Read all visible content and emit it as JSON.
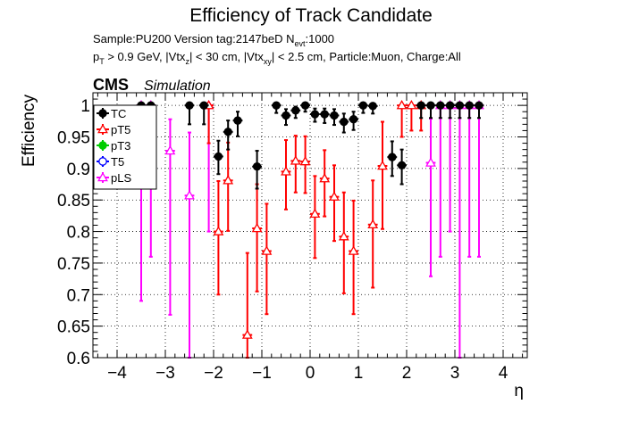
{
  "header": {
    "title": "Efficiency of Track Candidate",
    "sample_line": "Sample:PU200   Version tag:2147beD  N",
    "nevt_sub": "evt",
    "nevt_value": ":1000",
    "cuts": {
      "p": "p",
      "T": "T",
      "a": " > 0.9 GeV, |Vtx",
      "z": "z",
      "b": "| < 30 cm, |Vtx",
      "xy": "xy",
      "c": "| < 2.5 cm, Particle:Muon, Charge:All"
    },
    "cms": "CMS",
    "simulation": "Simulation"
  },
  "chart_data": {
    "type": "scatter",
    "title": "Efficiency of Track Candidate",
    "xlabel": "η",
    "ylabel": "Efficiency",
    "xlim": [
      -4.5,
      4.5
    ],
    "ylim": [
      0.6,
      1.02
    ],
    "x_ticks": [
      -4,
      -3,
      -2,
      -1,
      0,
      1,
      2,
      3,
      4
    ],
    "y_ticks": [
      0.6,
      0.65,
      0.7,
      0.75,
      0.8,
      0.85,
      0.9,
      0.95,
      1
    ],
    "y_tick_labels": [
      "0.6",
      "0.65",
      "0.7",
      "0.75",
      "0.8",
      "0.85",
      "0.9",
      "0.95",
      "1"
    ],
    "grid": true,
    "legend_position": "top-left",
    "series": [
      {
        "name": "TC",
        "color": "#000000",
        "marker": "filled-circle",
        "x": [
          -3.5,
          -3.3,
          -2.5,
          -2.2,
          -1.9,
          -1.7,
          -1.5,
          -1.1,
          -0.7,
          -0.5,
          -0.3,
          -0.1,
          0.1,
          0.3,
          0.5,
          0.7,
          0.9,
          1.1,
          1.3,
          1.7,
          1.9,
          2.3,
          2.5,
          2.7,
          2.9,
          3.1,
          3.3,
          3.5
        ],
        "y": [
          1.0,
          1.0,
          1.0,
          1.0,
          0.919,
          0.958,
          0.976,
          0.903,
          1.0,
          0.984,
          0.992,
          1.0,
          0.986,
          0.986,
          0.984,
          0.974,
          0.978,
          1.0,
          0.999,
          0.918,
          0.905,
          1.0,
          1.0,
          1.0,
          1.0,
          1.0,
          1.0,
          1.0
        ],
        "err_low": [
          0.03,
          0.03,
          0.03,
          0.03,
          0.028,
          0.028,
          0.025,
          0.035,
          0.012,
          0.015,
          0.012,
          0.01,
          0.012,
          0.014,
          0.015,
          0.017,
          0.017,
          0.012,
          0.012,
          0.03,
          0.03,
          0.02,
          0.02,
          0.02,
          0.02,
          0.02,
          0.02,
          0.02
        ],
        "err_high": [
          0,
          0,
          0,
          0,
          0.025,
          0.018,
          0.014,
          0.025,
          0,
          0.01,
          0.006,
          0,
          0.009,
          0.009,
          0.01,
          0.013,
          0.012,
          0,
          0.001,
          0.025,
          0.025,
          0,
          0,
          0,
          0,
          0,
          0,
          0
        ]
      },
      {
        "name": "pT5",
        "color": "#ff0000",
        "marker": "open-triangle",
        "x": [
          -2.1,
          -1.9,
          -1.7,
          -1.3,
          -1.1,
          -0.9,
          -0.5,
          -0.3,
          -0.1,
          0.1,
          0.3,
          0.5,
          0.7,
          0.9,
          1.3,
          1.5,
          1.9,
          2.1,
          2.3
        ],
        "y": [
          1.0,
          0.8,
          0.881,
          0.636,
          0.805,
          0.769,
          0.895,
          0.912,
          0.911,
          0.828,
          0.884,
          0.855,
          0.792,
          0.769,
          0.811,
          0.904,
          1.0,
          1.0,
          1.0
        ],
        "err_low": [
          0.06,
          0.1,
          0.08,
          0.14,
          0.1,
          0.1,
          0.06,
          0.05,
          0.05,
          0.07,
          0.06,
          0.07,
          0.09,
          0.1,
          0.1,
          0.1,
          0.05,
          0.04,
          0.04
        ],
        "err_high": [
          0,
          0.08,
          0.06,
          0.13,
          0.07,
          0.075,
          0.05,
          0.04,
          0.04,
          0.06,
          0.045,
          0.05,
          0.07,
          0.08,
          0.07,
          0.07,
          0,
          0,
          0
        ]
      },
      {
        "name": "pT3",
        "color": "#00cc00",
        "marker": "filled-circle",
        "x": [],
        "y": [],
        "err_low": [],
        "err_high": []
      },
      {
        "name": "T5",
        "color": "#0000ff",
        "marker": "open-circle",
        "x": [],
        "y": [],
        "err_low": [],
        "err_high": []
      },
      {
        "name": "pLS",
        "color": "#ff00ff",
        "marker": "open-triangle",
        "x": [
          -3.5,
          -3.3,
          -2.9,
          -2.5,
          -2.1,
          2.5,
          2.7,
          2.9,
          3.1,
          3.3,
          3.5
        ],
        "y": [
          1.0,
          1.0,
          0.928,
          0.857,
          1.0,
          0.909,
          1.0,
          1.0,
          1.0,
          1.0,
          1.0
        ],
        "err_low": [
          0.31,
          0.24,
          0.26,
          0.3,
          0.2,
          0.18,
          0.24,
          0.2,
          0.45,
          0.24,
          0.24
        ],
        "err_high": [
          0,
          0,
          0.05,
          0.1,
          0,
          0.07,
          0,
          0,
          0,
          0,
          0
        ]
      }
    ]
  }
}
